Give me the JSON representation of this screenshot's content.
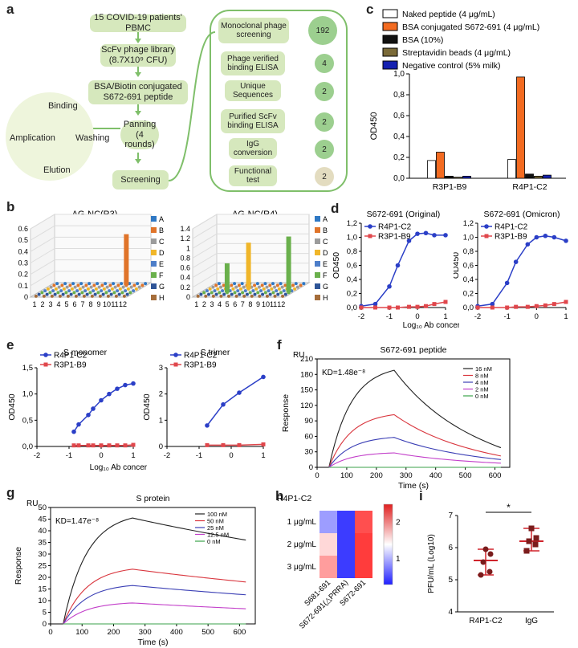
{
  "panel_labels": {
    "a": "a",
    "b": "b",
    "c": "c",
    "d": "d",
    "e": "e",
    "f": "f",
    "g": "g",
    "h": "h",
    "i": "i"
  },
  "panel_a": {
    "steps": [
      "15 COVID-19 patients' PBMC",
      "ScFv phage library (8.7X10⁹ CFU)",
      "BSA/Biotin conjugated S672-691 peptide",
      "Panning (4 rounds)",
      "Screening"
    ],
    "cycle": [
      "Binding",
      "Washing",
      "Elution",
      "Amplication"
    ],
    "screening_steps": [
      {
        "label": "Monoclonal phage screening",
        "count": "192"
      },
      {
        "label": "Phage verified binding ELISA",
        "count": "4"
      },
      {
        "label": "Unique Sequences",
        "count": "2"
      },
      {
        "label": "Purified ScFv binding ELISA",
        "count": "2"
      },
      {
        "label": "IgG conversion",
        "count": "2"
      },
      {
        "label": "Functional test",
        "count": "2"
      }
    ]
  },
  "chart_data": [
    {
      "panel": "b",
      "type": "bar",
      "title": "AG-NC(R3)",
      "rows": [
        "A",
        "B",
        "C",
        "D",
        "E",
        "F",
        "G",
        "H"
      ],
      "columns": [
        "1",
        "2",
        "3",
        "4",
        "5",
        "6",
        "7",
        "8",
        "9",
        "10",
        "11",
        "12"
      ],
      "zlim": [
        0,
        0.6
      ],
      "zticks": [
        "0",
        "0.1",
        "0.2",
        "0.3",
        "0.4",
        "0.5",
        "0.6"
      ],
      "peaks": [
        {
          "row": "B",
          "column": "10",
          "value": 0.45
        }
      ]
    },
    {
      "panel": "b",
      "type": "bar",
      "title": "AG-NC(R4)",
      "rows": [
        "A",
        "B",
        "C",
        "D",
        "E",
        "F",
        "G",
        "H"
      ],
      "columns": [
        "1",
        "2",
        "3",
        "4",
        "5",
        "6",
        "7",
        "8",
        "9",
        "10",
        "11",
        "12"
      ],
      "zlim": [
        0,
        1.4
      ],
      "zticks": [
        "0",
        "0.2",
        "0.4",
        "0.6",
        "0.8",
        "1",
        "1.2",
        "1.4"
      ],
      "peaks": [
        {
          "row": "F",
          "column": "4",
          "value": 0.6
        },
        {
          "row": "D",
          "column": "6",
          "value": 0.95
        },
        {
          "row": "F",
          "column": "12",
          "value": 1.15
        }
      ]
    },
    {
      "panel": "c",
      "type": "bar",
      "categories": [
        "R3P1-B9",
        "R4P1-C2"
      ],
      "ylabel": "OD450",
      "ylim": [
        0,
        1.0
      ],
      "yticks": [
        "0,0",
        "0,2",
        "0,4",
        "0,6",
        "0,8",
        "1,0"
      ],
      "series": [
        {
          "name": "Naked peptide (4 μg/mL)",
          "color": "#ffffff",
          "values": [
            0.17,
            0.18
          ]
        },
        {
          "name": "BSA conjugated S672-691 (4 μg/mL)",
          "color": "#f36b21",
          "values": [
            0.25,
            0.97
          ]
        },
        {
          "name": "BSA (10%)",
          "color": "#111111",
          "values": [
            0.02,
            0.04
          ]
        },
        {
          "name": "Streptavidin beads (4 μg/mL)",
          "color": "#7a6a38",
          "values": [
            0.01,
            0.02
          ]
        },
        {
          "name": "Negative control (5% milk)",
          "color": "#1420b0",
          "values": [
            0.02,
            0.03
          ]
        }
      ]
    },
    {
      "panel": "d",
      "type": "line",
      "title": "S672-691 (Original)",
      "ylabel": "OD450",
      "xlim": [
        -2,
        1
      ],
      "ylim": [
        0,
        1.2
      ],
      "xticks": [
        "-2",
        "-1",
        "0",
        "1"
      ],
      "yticks": [
        "0,0",
        "0,2",
        "0,4",
        "0,6",
        "0,8",
        "1,0",
        "1,2"
      ],
      "series": [
        {
          "name": "R4P1-C2",
          "x": [
            -2,
            -1.5,
            -1,
            -0.7,
            -0.3,
            0,
            0.3,
            0.6,
            1
          ],
          "y": [
            0.02,
            0.05,
            0.3,
            0.6,
            0.95,
            1.05,
            1.06,
            1.03,
            1.03
          ]
        },
        {
          "name": "R3P1-B9",
          "x": [
            -2,
            -1.5,
            -1,
            -0.7,
            -0.3,
            0,
            0.3,
            0.6,
            1
          ],
          "y": [
            0.0,
            0.0,
            0.0,
            0.0,
            0.01,
            0.01,
            0.02,
            0.05,
            0.08
          ]
        }
      ]
    },
    {
      "panel": "d",
      "type": "line",
      "title": "S672-691 (Omicron)",
      "ylabel": "OD450",
      "xlim": [
        -2,
        1
      ],
      "ylim": [
        0,
        1.2
      ],
      "xticks": [
        "-2",
        "-1",
        "0",
        "1"
      ],
      "yticks": [
        "0,0",
        "0,2",
        "0,4",
        "0,6",
        "0,8",
        "1,0",
        "1,2"
      ],
      "series": [
        {
          "name": "R4P1-C2",
          "x": [
            -2,
            -1.5,
            -1,
            -0.7,
            -0.3,
            0,
            0.3,
            0.6,
            1
          ],
          "y": [
            0.02,
            0.05,
            0.35,
            0.65,
            0.9,
            1.0,
            1.02,
            1.0,
            0.95
          ]
        },
        {
          "name": "R3P1-B9",
          "x": [
            -2,
            -1.5,
            -1,
            -0.7,
            -0.3,
            0,
            0.3,
            0.6,
            1
          ],
          "y": [
            0.0,
            0.0,
            0.0,
            0.01,
            0.01,
            0.02,
            0.03,
            0.05,
            0.08
          ]
        }
      ]
    },
    {
      "panel": "e",
      "type": "line",
      "title": "S monomer",
      "ylabel": "OD450",
      "xlim": [
        -2,
        1
      ],
      "ylim": [
        0,
        1.5
      ],
      "xticks": [
        "-2",
        "-1",
        "0",
        "1"
      ],
      "yticks": [
        "0,0",
        "0,5",
        "1,0",
        "1,5"
      ],
      "series": [
        {
          "name": "R4P1-C2",
          "x": [
            -0.85,
            -0.7,
            -0.4,
            -0.25,
            0,
            0.25,
            0.5,
            0.75,
            1
          ],
          "y": [
            0.28,
            0.42,
            0.6,
            0.72,
            0.88,
            1.0,
            1.1,
            1.17,
            1.2
          ]
        },
        {
          "name": "R3P1-B9",
          "x": [
            -0.85,
            -0.7,
            -0.4,
            -0.25,
            0,
            0.25,
            0.5,
            0.75,
            1
          ],
          "y": [
            0.02,
            0.02,
            0.02,
            0.02,
            0.02,
            0.02,
            0.02,
            0.02,
            0.03
          ]
        }
      ]
    },
    {
      "panel": "e",
      "type": "line",
      "title": "S trimer",
      "ylabel": "OD450",
      "xlim": [
        -2,
        1
      ],
      "ylim": [
        0,
        3
      ],
      "xticks": [
        "-2",
        "-1",
        "0",
        "1"
      ],
      "yticks": [
        "0",
        "1",
        "2",
        "3"
      ],
      "series": [
        {
          "name": "R4P1-C2",
          "x": [
            -0.75,
            -0.25,
            0.25,
            1
          ],
          "y": [
            0.8,
            1.6,
            2.05,
            2.65
          ]
        },
        {
          "name": "R3P1-B9",
          "x": [
            -0.75,
            -0.25,
            0.25,
            1
          ],
          "y": [
            0.05,
            0.05,
            0.05,
            0.08
          ]
        }
      ]
    },
    {
      "panel": "f",
      "type": "line",
      "title": "S672-691 peptide",
      "ylabel": "Response",
      "xlabel": "Time (s)",
      "xlim": [
        0,
        650
      ],
      "ylim": [
        0,
        210
      ],
      "xticks": [
        "0",
        "100",
        "200",
        "300",
        "400",
        "500",
        "600"
      ],
      "yticks": [
        "0",
        "30",
        "60",
        "90",
        "120",
        "150",
        "180",
        "210"
      ],
      "annotation": "KD=1.48e⁻⁸",
      "series": [
        {
          "name": "16 nM",
          "color": "#222222",
          "peak": 188,
          "end": 38
        },
        {
          "name": "8 nM",
          "color": "#d9363e",
          "peak": 102,
          "end": 22
        },
        {
          "name": "4 nM",
          "color": "#3b3fb5",
          "peak": 58,
          "end": 15
        },
        {
          "name": "2 nM",
          "color": "#c23ec9",
          "peak": 28,
          "end": 8
        },
        {
          "name": "0 nM",
          "color": "#3aa24a",
          "peak": 0,
          "end": 0
        }
      ]
    },
    {
      "panel": "g",
      "type": "line",
      "title": "S protein",
      "ylabel": "Response",
      "xlabel": "Time (s)",
      "xlim": [
        0,
        650
      ],
      "ylim": [
        0,
        50
      ],
      "xticks": [
        "0",
        "100",
        "200",
        "300",
        "400",
        "500",
        "600"
      ],
      "yticks": [
        "0",
        "5",
        "10",
        "15",
        "20",
        "25",
        "30",
        "35",
        "40",
        "45",
        "50"
      ],
      "annotation": "KD=1.47e⁻⁸",
      "series": [
        {
          "name": "100 nM",
          "color": "#222222",
          "peak": 45.5,
          "end": 36
        },
        {
          "name": "50 nM",
          "color": "#d9363e",
          "peak": 23.5,
          "end": 18
        },
        {
          "name": "25 nM",
          "color": "#3b3fb5",
          "peak": 16.5,
          "end": 12.5
        },
        {
          "name": "12.5 nM",
          "color": "#c23ec9",
          "peak": 9,
          "end": 6.5
        },
        {
          "name": "0 nM",
          "color": "#3aa24a",
          "peak": 0,
          "end": 0
        }
      ]
    },
    {
      "panel": "h",
      "type": "heatmap",
      "title": "R4P1-C2",
      "rows": [
        "1 μg/mL",
        "2 μg/mL",
        "3 μg/mL"
      ],
      "columns": [
        "S681-691",
        "S672-691(△PRRA)",
        "S672-691"
      ],
      "values": [
        [
          0.9,
          0.4,
          2.3
        ],
        [
          1.6,
          0.4,
          2.4
        ],
        [
          1.9,
          0.4,
          2.4
        ]
      ],
      "colorbar_ticks": [
        "1",
        "2"
      ],
      "vmin": 0.3,
      "vmax": 2.5
    },
    {
      "panel": "i",
      "type": "scatter",
      "categories": [
        "R4P1-C2",
        "IgG"
      ],
      "ylabel": "PFU/mL (Log10)",
      "ylim": [
        4,
        7
      ],
      "yticks": [
        "4",
        "5",
        "6",
        "7"
      ],
      "significance": "*",
      "series": [
        {
          "name": "R4P1-C2",
          "values": [
            5.15,
            5.25,
            5.55,
            5.8,
            5.95
          ],
          "mean": 5.6
        },
        {
          "name": "IgG",
          "values": [
            5.9,
            6.1,
            6.2,
            6.3,
            6.6
          ],
          "mean": 6.2
        }
      ]
    }
  ],
  "shared": {
    "log_axis_label": "Log₁₀ Ab concertration (μg/mL)"
  }
}
